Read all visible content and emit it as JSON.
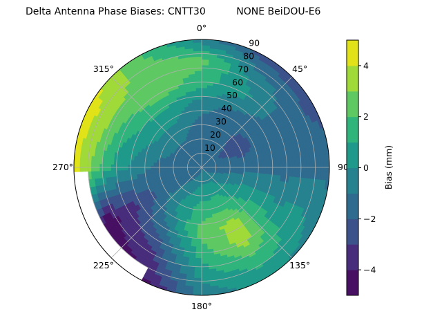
{
  "chart_data": {
    "type": "polar-contour",
    "title": "Delta Antenna Phase Biases: CNTT30          NONE BeiDOU-E6",
    "angular_direction": "clockwise",
    "zero_location": "top",
    "angular_tick_labels": [
      "0°",
      "45°",
      "90",
      "135°",
      "180°",
      "225°",
      "270°",
      "315°"
    ],
    "angular_ticks": [
      0,
      45,
      90,
      135,
      180,
      225,
      270,
      315
    ],
    "radial_ticks": [
      10,
      20,
      30,
      40,
      50,
      60,
      70,
      80,
      90
    ],
    "radial_tick_labels": [
      "10",
      "20",
      "30",
      "40",
      "50",
      "60",
      "70",
      "80",
      "90"
    ],
    "rlim": [
      0,
      90
    ],
    "grid": true,
    "colorbar": {
      "label": "Bias (mm)",
      "levels": [
        -5,
        -4,
        -3,
        -2,
        -1,
        0,
        1,
        2,
        3,
        4,
        5
      ],
      "ticks": [
        -4,
        -2,
        0,
        2,
        4
      ],
      "tick_labels": [
        "−4",
        "−2",
        "0",
        "2",
        "4"
      ],
      "colormap": "viridis",
      "colors": [
        "#471063",
        "#472d7b",
        "#3b528b",
        "#2f6b8e",
        "#26828e",
        "#1f9a8a",
        "#2fb47c",
        "#5ec962",
        "#a0da39",
        "#e1e318"
      ]
    },
    "grid_azimuth_deg": [
      0,
      30,
      60,
      90,
      120,
      150,
      180,
      210,
      240,
      270,
      300,
      330
    ],
    "grid_zenith_deg": [
      0,
      15,
      30,
      45,
      60,
      75,
      90
    ],
    "values_mm": [
      [
        -1.5,
        -1.5,
        -1.5,
        -0.5,
        1.5,
        2.4,
        -0.5
      ],
      [
        -1.5,
        -1.5,
        -1.6,
        -1.2,
        0.3,
        -0.5,
        -2.6
      ],
      [
        -1.5,
        -2.1,
        -2.6,
        -1.6,
        -1.3,
        -1.6,
        -2.5
      ],
      [
        -1.5,
        -1.5,
        -1.5,
        -1.5,
        -1.5,
        -1.3,
        -1.2
      ],
      [
        -1.5,
        -0.6,
        0.4,
        0.6,
        0.3,
        0.5,
        -0.5
      ],
      [
        -1.3,
        0.4,
        1.6,
        3.4,
        3.5,
        1.6,
        0.4
      ],
      [
        -1.3,
        0.3,
        1.5,
        2.5,
        1.5,
        0.5,
        -0.8
      ],
      [
        -1.5,
        -0.6,
        0.3,
        -0.6,
        -2.2,
        -3.6,
        -4.6
      ],
      [
        -1.5,
        -1.5,
        -1.6,
        -2.6,
        -3.6,
        -4.6,
        null
      ],
      [
        -1.5,
        -1.5,
        -1.3,
        -0.5,
        0.5,
        2.5,
        4.5
      ],
      [
        -1.5,
        -1.4,
        -0.5,
        0.6,
        1.7,
        3.5,
        4.6
      ],
      [
        -1.5,
        -1.5,
        -0.5,
        0.6,
        2.6,
        2.6,
        2.2
      ]
    ]
  }
}
